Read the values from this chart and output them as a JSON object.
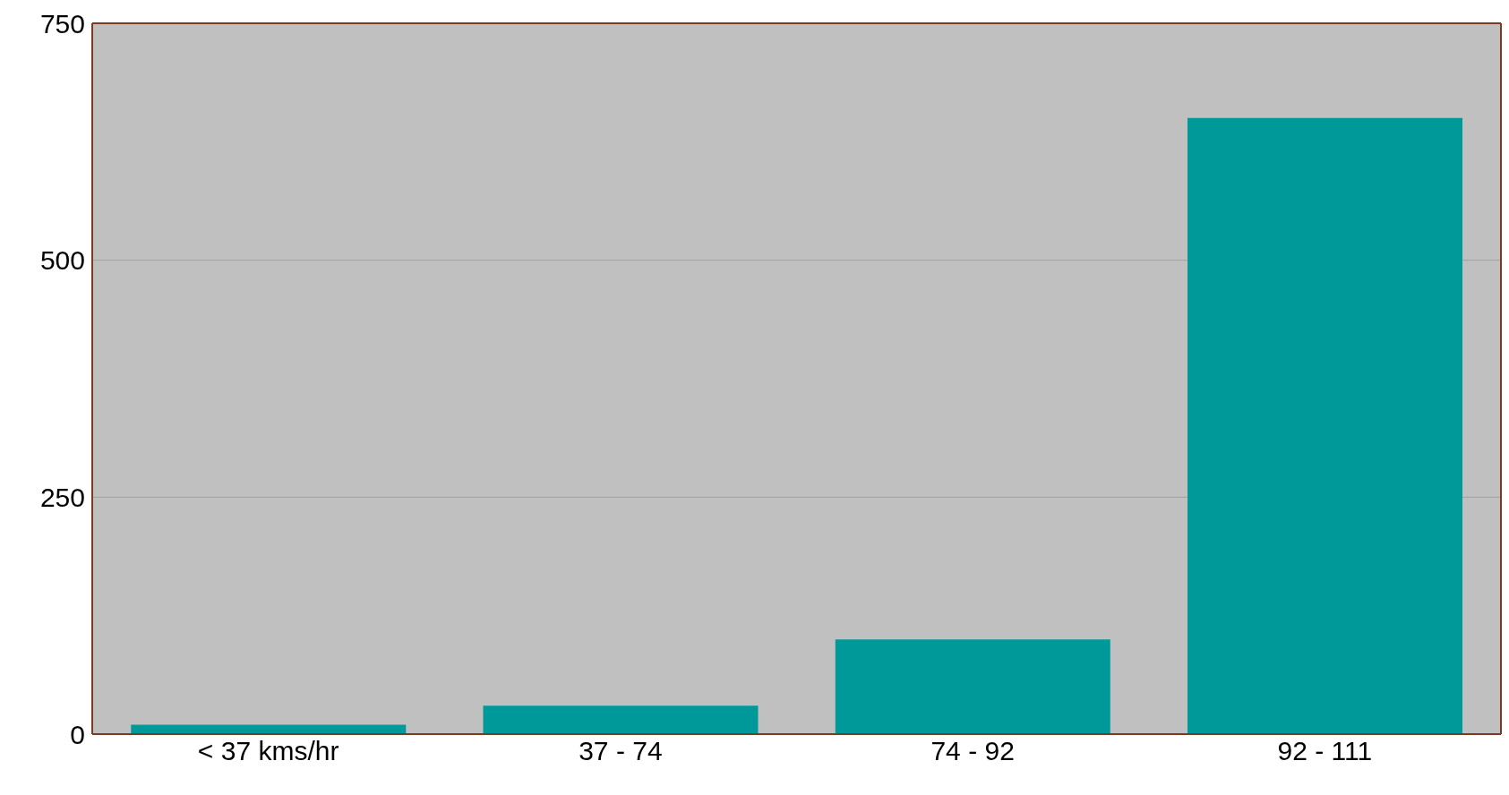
{
  "chart_data": {
    "type": "bar",
    "categories": [
      "< 37 kms/hr",
      "37 - 74",
      "74 - 92",
      "92 - 111"
    ],
    "values": [
      10,
      30,
      100,
      650
    ],
    "color": "#009999",
    "ylim": [
      0,
      750
    ],
    "yticks": [
      0,
      250,
      500,
      750
    ],
    "grid": "y"
  }
}
